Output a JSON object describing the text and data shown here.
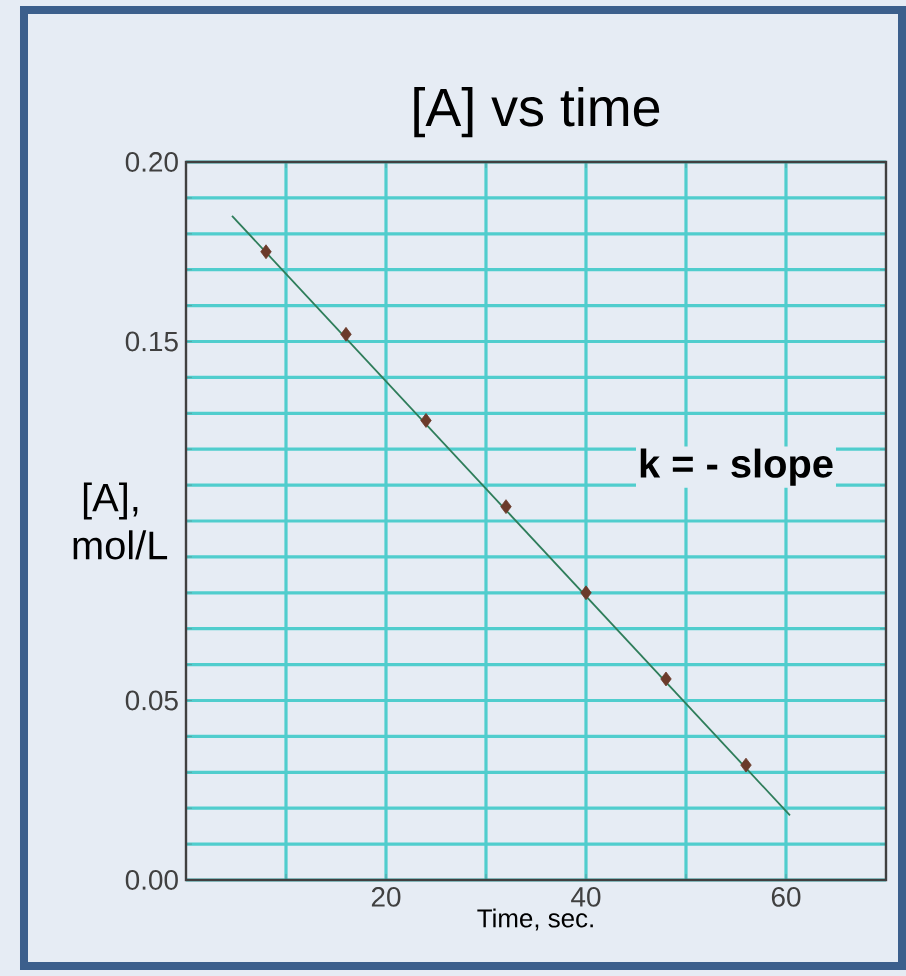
{
  "chart_data": {
    "type": "scatter",
    "title": "[A]  vs time",
    "xlabel": "Time, sec.",
    "ylabel": "[A], mol/L",
    "xlim": [
      0,
      70
    ],
    "ylim": [
      0,
      0.2
    ],
    "xticks": [
      {
        "value": 10,
        "label": null
      },
      20,
      {
        "value": 30,
        "label": null
      },
      40,
      {
        "value": 50,
        "label": null
      },
      60
    ],
    "yticks": [
      {
        "value": 0,
        "label": "0.00"
      },
      {
        "value": 0.01,
        "label": null
      },
      {
        "value": 0.02,
        "label": null
      },
      {
        "value": 0.03,
        "label": null
      },
      {
        "value": 0.04,
        "label": null
      },
      0.05,
      {
        "value": 0.06,
        "label": null
      },
      {
        "value": 0.07,
        "label": null
      },
      {
        "value": 0.08,
        "label": null
      },
      {
        "value": 0.09,
        "label": null
      },
      {
        "value": 0.1,
        "label": null
      },
      {
        "value": 0.11,
        "label": null
      },
      {
        "value": 0.12,
        "label": null
      },
      {
        "value": 0.13,
        "label": null
      },
      {
        "value": 0.14,
        "label": null
      },
      0.15,
      {
        "value": 0.16,
        "label": null
      },
      {
        "value": 0.17,
        "label": null
      },
      {
        "value": 0.18,
        "label": null
      },
      {
        "value": 0.19,
        "label": null
      },
      {
        "value": 0.2,
        "label": "0.20"
      }
    ],
    "grid": true,
    "marker": "diamond",
    "series": [
      {
        "color": "#6b3a2a",
        "x": [
          8,
          16,
          24,
          32,
          40,
          48,
          56
        ],
        "values": [
          0.175,
          0.152,
          0.128,
          0.104,
          0.08,
          0.056,
          0.032
        ]
      },
      {
        "type": "line",
        "color": "#2e7d5a",
        "marker": "none",
        "x": [
          4.6,
          60.4
        ],
        "values": [
          0.185,
          0.018
        ]
      }
    ],
    "annotations": [
      "k = - slope"
    ]
  }
}
